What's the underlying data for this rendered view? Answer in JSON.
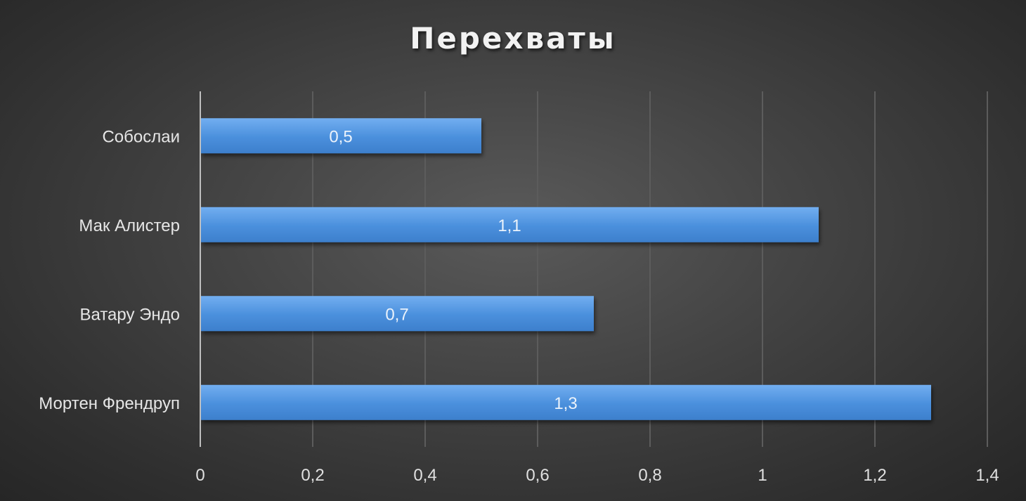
{
  "chart_data": {
    "type": "bar",
    "orientation": "horizontal",
    "title": "Перехваты",
    "categories": [
      "Собослаи",
      "Мак Алистер",
      "Ватару Эндо",
      "Мортен Френдруп"
    ],
    "values": [
      0.5,
      1.1,
      0.7,
      1.3
    ],
    "value_labels": [
      "0,5",
      "1,1",
      "0,7",
      "1,3"
    ],
    "xlim": [
      0,
      1.4
    ],
    "x_ticks": [
      0,
      0.2,
      0.4,
      0.6,
      0.8,
      1,
      1.2,
      1.4
    ],
    "x_tick_labels": [
      "0",
      "0,2",
      "0,4",
      "0,6",
      "0,8",
      "1",
      "1,2",
      "1,4"
    ],
    "xlabel": "",
    "ylabel": "",
    "grid": "vertical",
    "legend": "none",
    "colors": {
      "bar": "#4a8fdc",
      "bar_light": "#6aa8ec",
      "grid": "#5c5c5c",
      "axis": "#bfbfbf",
      "background": "#3a3a3a"
    }
  }
}
